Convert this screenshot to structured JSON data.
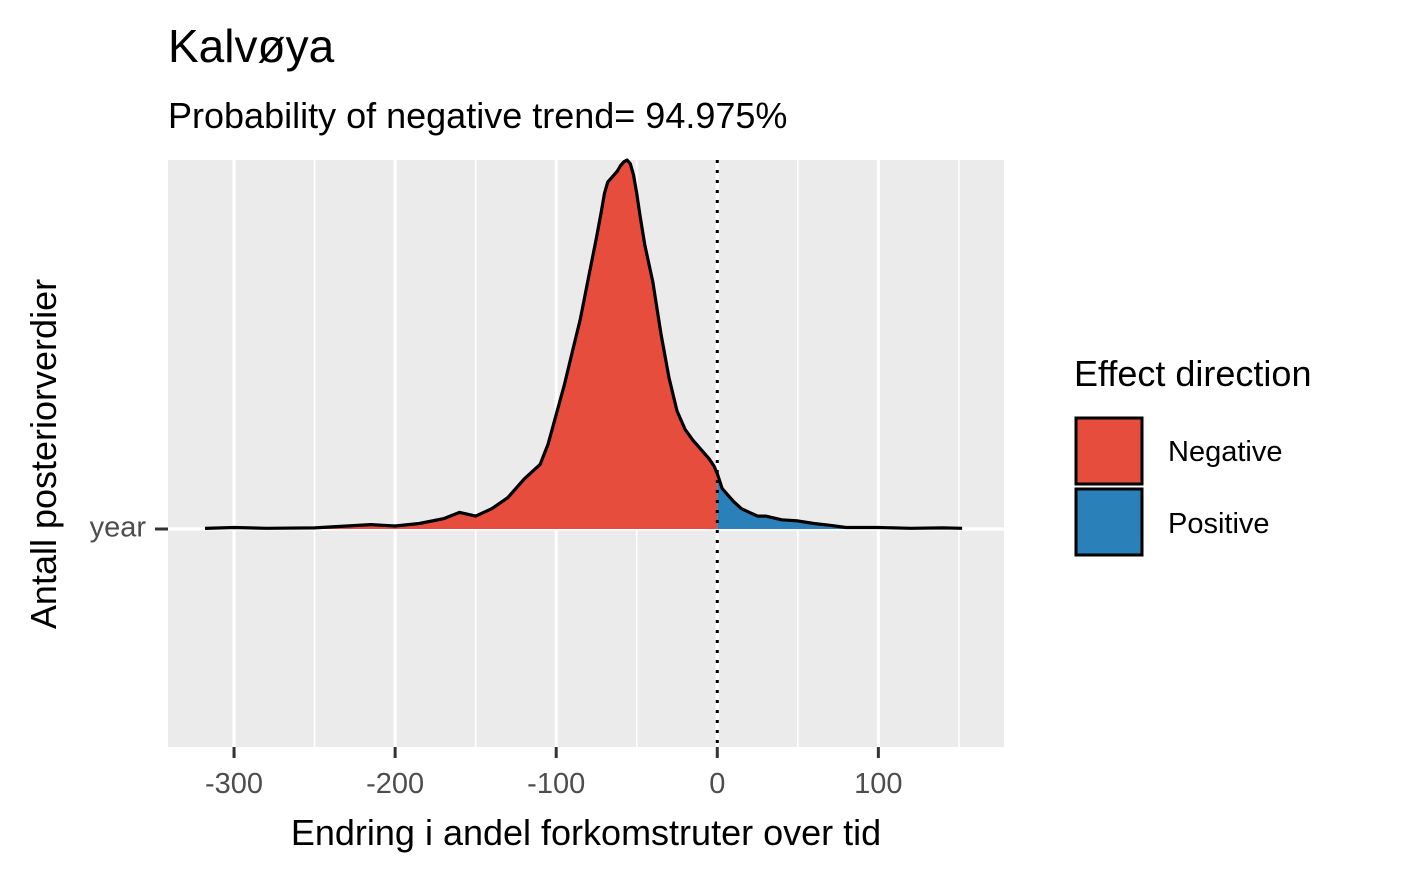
{
  "chart_data": {
    "type": "area",
    "title": "Kalvøya",
    "subtitle": "Probability of negative trend= 94.975%",
    "xlabel": "Endring i andel forkomstruter over tid",
    "ylabel": "Antall posteriorverdier",
    "y_category": "year",
    "xlim": [
      -341,
      178
    ],
    "x_ticks": [
      -300,
      -200,
      -100,
      0,
      100
    ],
    "x_tick_labels": [
      "-300",
      "-200",
      "-100",
      "0",
      "100"
    ],
    "reference_line_x": 0,
    "grid": true,
    "legend": {
      "title": "Effect direction",
      "position": "right",
      "entries": [
        {
          "label": "Negative",
          "color": "#E64D3D"
        },
        {
          "label": "Positive",
          "color": "#2A80B9"
        }
      ]
    },
    "density": {
      "x": [
        -318,
        -300,
        -280,
        -250,
        -230,
        -215,
        -200,
        -185,
        -170,
        -160,
        -150,
        -140,
        -130,
        -120,
        -115,
        -110,
        -105,
        -100,
        -95,
        -90,
        -85,
        -80,
        -75,
        -72,
        -70,
        -68,
        -65,
        -62,
        -60,
        -58,
        -56,
        -54,
        -52,
        -50,
        -48,
        -45,
        -40,
        -35,
        -30,
        -25,
        -20,
        -15,
        -10,
        -5,
        -2,
        0,
        3,
        6,
        10,
        15,
        20,
        25,
        30,
        40,
        50,
        60,
        70,
        80,
        100,
        120,
        140,
        152
      ],
      "y": [
        0.0015,
        0.004,
        0.002,
        0.003,
        0.008,
        0.012,
        0.008,
        0.015,
        0.028,
        0.045,
        0.035,
        0.055,
        0.085,
        0.135,
        0.155,
        0.175,
        0.23,
        0.31,
        0.39,
        0.48,
        0.57,
        0.68,
        0.79,
        0.86,
        0.91,
        0.94,
        0.955,
        0.97,
        0.985,
        0.995,
        1.0,
        0.99,
        0.96,
        0.91,
        0.85,
        0.77,
        0.67,
        0.53,
        0.41,
        0.32,
        0.27,
        0.24,
        0.215,
        0.19,
        0.17,
        0.15,
        0.11,
        0.095,
        0.075,
        0.055,
        0.045,
        0.035,
        0.035,
        0.025,
        0.022,
        0.015,
        0.01,
        0.004,
        0.004,
        0.002,
        0.003,
        0.002
      ]
    }
  }
}
